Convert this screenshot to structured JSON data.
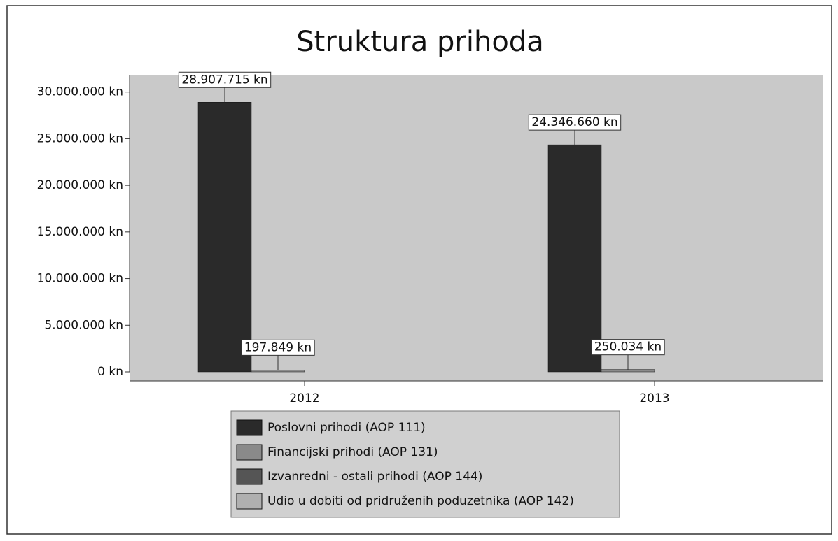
{
  "chart_data": {
    "type": "bar",
    "title": "Struktura prihoda",
    "categories": [
      "2012",
      "2013"
    ],
    "series": [
      {
        "name": "Poslovni prihodi (AOP 111)",
        "color": "#2a2a2a",
        "values": [
          28907715,
          24346660
        ],
        "value_labels": [
          "28.907.715 kn",
          "24.346.660 kn"
        ]
      },
      {
        "name": "Financijski prihodi (AOP 131)",
        "color": "#8a8a8a",
        "values": [
          197849,
          250034
        ],
        "value_labels": [
          "197.849 kn",
          "250.034 kn"
        ]
      },
      {
        "name": "Izvanredni - ostali prihodi (AOP 144)",
        "color": "#555555",
        "values": [
          0,
          0
        ]
      },
      {
        "name": "Udio u dobiti od pridruženih poduzetnika (AOP 142)",
        "color": "#b0b0b0",
        "values": [
          0,
          0
        ]
      }
    ],
    "ylim": [
      0,
      32000000
    ],
    "yticks": [
      {
        "value": 0,
        "label": "0 kn"
      },
      {
        "value": 5000000,
        "label": "5.000.000 kn"
      },
      {
        "value": 10000000,
        "label": "10.000.000 kn"
      },
      {
        "value": 15000000,
        "label": "15.000.000 kn"
      },
      {
        "value": 20000000,
        "label": "20.000.000 kn"
      },
      {
        "value": 25000000,
        "label": "25.000.000 kn"
      },
      {
        "value": 30000000,
        "label": "30.000.000 kn"
      }
    ]
  }
}
